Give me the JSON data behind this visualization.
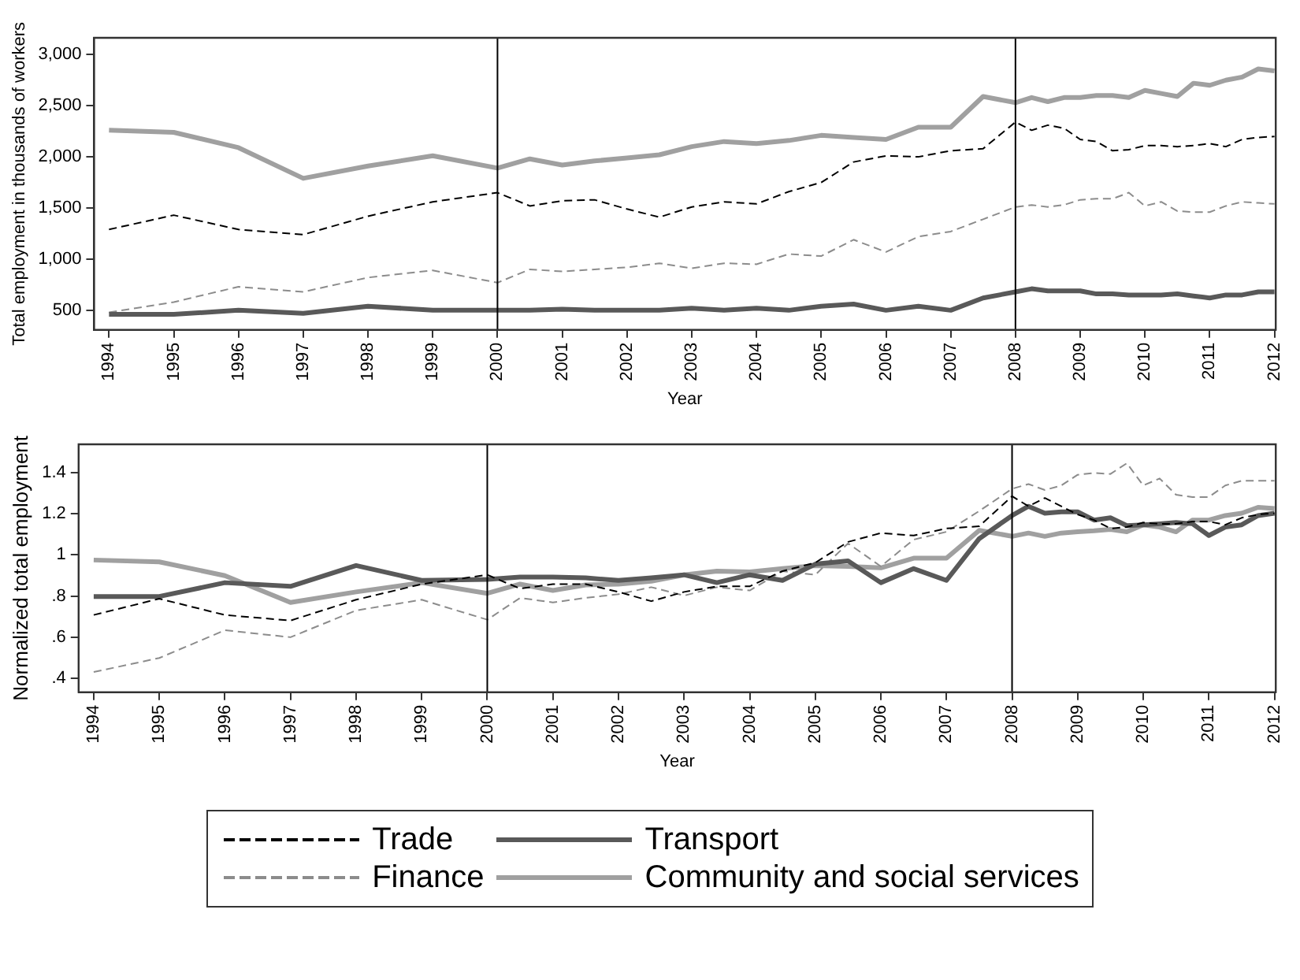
{
  "chart_data": [
    {
      "type": "line",
      "xlabel": "Year",
      "ylabel": "Total employment in thousands of workers",
      "x": [
        1994,
        1995,
        1996,
        1997,
        1998,
        1999,
        2000,
        2000.5,
        2001,
        2001.5,
        2002,
        2002.5,
        2003,
        2003.5,
        2004,
        2004.5,
        2005,
        2005.5,
        2006,
        2006.5,
        2007,
        2007.5,
        2008,
        2008.25,
        2008.5,
        2008.75,
        2009,
        2009.25,
        2009.5,
        2009.75,
        2010,
        2010.25,
        2010.5,
        2010.75,
        2011,
        2011.25,
        2011.5,
        2011.75,
        2012
      ],
      "series": [
        {
          "color": "#000000",
          "line_style": "dashed",
          "values": [
            1290,
            1430,
            1290,
            1240,
            1420,
            1560,
            1650,
            1520,
            1570,
            1580,
            1490,
            1410,
            1510,
            1560,
            1540,
            1660,
            1750,
            1950,
            2010,
            2000,
            2060,
            2080,
            2340,
            2260,
            2310,
            2280,
            2170,
            2150,
            2060,
            2070,
            2110,
            2110,
            2100,
            2110,
            2130,
            2100,
            2170,
            2190,
            2200
          ]
        },
        {
          "color": "#595959",
          "line_style": "solid",
          "values": [
            460,
            460,
            500,
            470,
            540,
            500,
            500,
            500,
            510,
            500,
            500,
            500,
            520,
            500,
            520,
            500,
            540,
            560,
            500,
            540,
            500,
            620,
            680,
            710,
            690,
            690,
            690,
            660,
            660,
            650,
            650,
            650,
            660,
            640,
            620,
            650,
            650,
            680,
            680
          ]
        },
        {
          "color": "#8c8c8c",
          "line_style": "dashed",
          "values": [
            480,
            580,
            730,
            680,
            820,
            890,
            770,
            900,
            880,
            900,
            920,
            960,
            910,
            960,
            950,
            1050,
            1030,
            1190,
            1070,
            1220,
            1270,
            1390,
            1510,
            1530,
            1510,
            1530,
            1580,
            1590,
            1590,
            1650,
            1520,
            1560,
            1470,
            1460,
            1460,
            1520,
            1560,
            1550,
            1540
          ]
        },
        {
          "color": "#a0a0a0",
          "line_style": "solid",
          "values": [
            2260,
            2240,
            2090,
            1790,
            1910,
            2010,
            1890,
            1980,
            1920,
            1960,
            1990,
            2020,
            2100,
            2150,
            2130,
            2160,
            2210,
            2190,
            2170,
            2290,
            2290,
            2590,
            2530,
            2580,
            2540,
            2580,
            2580,
            2600,
            2600,
            2580,
            2650,
            2620,
            2590,
            2720,
            2700,
            2750,
            2780,
            2860,
            2840
          ]
        }
      ],
      "xlim": [
        1993.77,
        2012.02
      ],
      "xticks": [
        1994,
        1995,
        1996,
        1997,
        1998,
        1999,
        2000,
        2001,
        2002,
        2003,
        2004,
        2005,
        2006,
        2007,
        2008,
        2009,
        2010,
        2011,
        2012
      ],
      "ylim": [
        309,
        3164
      ],
      "yticks": [
        {
          "value": 500,
          "label": "500"
        },
        {
          "value": 1000,
          "label": "1,000"
        },
        {
          "value": 1500,
          "label": "1,500"
        },
        {
          "value": 2000,
          "label": "2,000"
        },
        {
          "value": 2500,
          "label": "2,500"
        },
        {
          "value": 3000,
          "label": "3,000"
        }
      ],
      "ref_lines": [
        {
          "axis": "x",
          "value": 2000,
          "color": "#000000"
        },
        {
          "axis": "x",
          "value": 2008,
          "color": "#000000"
        }
      ],
      "grid": false
    },
    {
      "type": "line",
      "xlabel": "Year",
      "ylabel": "Normalized total employment",
      "x": [
        1994,
        1995,
        1996,
        1997,
        1998,
        1999,
        2000,
        2000.5,
        2001,
        2001.5,
        2002,
        2002.5,
        2003,
        2003.5,
        2004,
        2004.5,
        2005,
        2005.5,
        2006,
        2006.5,
        2007,
        2007.5,
        2008,
        2008.25,
        2008.5,
        2008.75,
        2009,
        2009.25,
        2009.5,
        2009.75,
        2010,
        2010.25,
        2010.5,
        2010.75,
        2011,
        2011.25,
        2011.5,
        2011.75,
        2012
      ],
      "series": [
        {
          "name": "Trade",
          "color": "#000000",
          "line_style": "dashed",
          "values": [
            0.708,
            0.787,
            0.708,
            0.681,
            0.782,
            0.858,
            0.903,
            0.836,
            0.858,
            0.858,
            0.82,
            0.775,
            0.82,
            0.847,
            0.847,
            0.921,
            0.962,
            1.063,
            1.106,
            1.094,
            1.128,
            1.139,
            1.285,
            1.236,
            1.276,
            1.236,
            1.196,
            1.169,
            1.128,
            1.135,
            1.157,
            1.151,
            1.151,
            1.162,
            1.162,
            1.146,
            1.18,
            1.196,
            1.202
          ]
        },
        {
          "name": "Transport",
          "color": "#595959",
          "line_style": "solid",
          "values": [
            0.798,
            0.798,
            0.865,
            0.847,
            0.948,
            0.876,
            0.881,
            0.892,
            0.892,
            0.888,
            0.876,
            0.888,
            0.903,
            0.865,
            0.903,
            0.876,
            0.955,
            0.971,
            0.865,
            0.933,
            0.876,
            1.079,
            1.191,
            1.236,
            1.202,
            1.209,
            1.209,
            1.169,
            1.18,
            1.142,
            1.146,
            1.151,
            1.157,
            1.151,
            1.094,
            1.135,
            1.146,
            1.191,
            1.202
          ]
        },
        {
          "name": "Finance",
          "color": "#8c8c8c",
          "line_style": "dashed",
          "values": [
            0.431,
            0.499,
            0.634,
            0.6,
            0.73,
            0.782,
            0.685,
            0.791,
            0.769,
            0.791,
            0.809,
            0.843,
            0.802,
            0.843,
            0.827,
            0.921,
            0.903,
            1.056,
            0.944,
            1.074,
            1.112,
            1.213,
            1.321,
            1.344,
            1.315,
            1.337,
            1.389,
            1.398,
            1.393,
            1.445,
            1.337,
            1.371,
            1.292,
            1.281,
            1.281,
            1.337,
            1.36,
            1.36,
            1.36
          ]
        },
        {
          "name": "Community and social services",
          "color": "#a0a0a0",
          "line_style": "solid",
          "values": [
            0.975,
            0.966,
            0.899,
            0.769,
            0.82,
            0.865,
            0.813,
            0.858,
            0.827,
            0.854,
            0.858,
            0.872,
            0.903,
            0.921,
            0.917,
            0.933,
            0.948,
            0.944,
            0.937,
            0.984,
            0.984,
            1.119,
            1.09,
            1.106,
            1.09,
            1.106,
            1.112,
            1.117,
            1.124,
            1.112,
            1.146,
            1.135,
            1.112,
            1.169,
            1.169,
            1.191,
            1.202,
            1.231,
            1.225
          ]
        }
      ],
      "xlim": [
        1993.77,
        2012.02
      ],
      "xticks": [
        1994,
        1995,
        1996,
        1997,
        1998,
        1999,
        2000,
        2001,
        2002,
        2003,
        2004,
        2005,
        2006,
        2007,
        2008,
        2009,
        2010,
        2011,
        2012
      ],
      "ylim": [
        0.333,
        1.537
      ],
      "yticks": [
        {
          "value": 0.4,
          "label": ".4"
        },
        {
          "value": 0.6,
          "label": ".6"
        },
        {
          "value": 0.8,
          "label": ".8"
        },
        {
          "value": 1,
          "label": "1"
        },
        {
          "value": 1.2,
          "label": "1.2"
        },
        {
          "value": 1.4,
          "label": "1.4"
        }
      ],
      "ref_lines": [
        {
          "axis": "x",
          "value": 2000,
          "color": "#000000"
        },
        {
          "axis": "x",
          "value": 2008,
          "color": "#000000"
        }
      ],
      "grid": false,
      "legend": "bottom"
    }
  ]
}
